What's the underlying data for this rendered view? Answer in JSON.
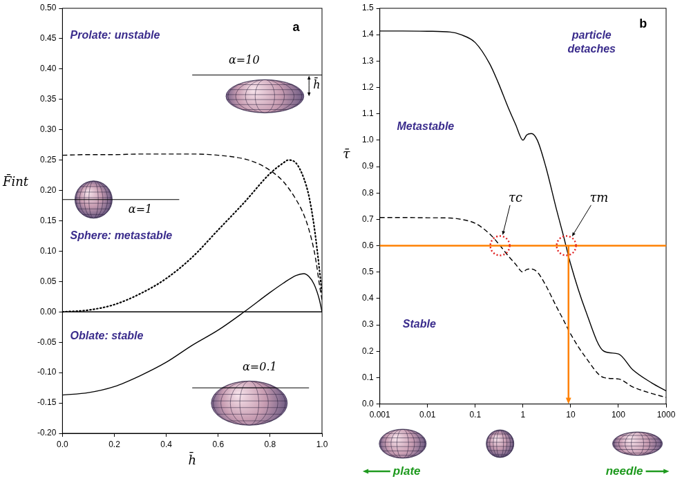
{
  "chart_data": [
    {
      "type": "line",
      "panel_label": "a",
      "x_label": "h̄",
      "y_label": "F̄int",
      "xlim": [
        0,
        1
      ],
      "ylim": [
        -0.2,
        0.5
      ],
      "xticks": [
        {
          "value": 0,
          "label": "0.0"
        },
        0.2,
        0.4,
        0.6,
        0.8,
        {
          "value": 1,
          "label": "1.0"
        }
      ],
      "yticks": [
        {
          "value": -0.2,
          "label": "-0.20"
        },
        -0.15,
        {
          "value": -0.1,
          "label": "-0.10"
        },
        -0.05,
        {
          "value": 0,
          "label": "0.00"
        },
        0.05,
        {
          "value": 0.1,
          "label": "0.10"
        },
        0.15,
        {
          "value": 0.2,
          "label": "0.20"
        },
        0.25,
        {
          "value": 0.3,
          "label": "0.30"
        },
        0.35,
        {
          "value": 0.4,
          "label": "0.40"
        },
        0.45,
        {
          "value": 0.5,
          "label": "0.50"
        }
      ],
      "grid": false,
      "series": [
        {
          "color": "#000000",
          "line_style": "dashed",
          "x": [
            0,
            0.1,
            0.2,
            0.3,
            0.4,
            0.5,
            0.6,
            0.7,
            0.75,
            0.8,
            0.85,
            0.9,
            0.93,
            0.95,
            0.97,
            0.98,
            0.99,
            1.0
          ],
          "values": [
            0.258,
            0.259,
            0.259,
            0.26,
            0.26,
            0.26,
            0.258,
            0.252,
            0.245,
            0.233,
            0.215,
            0.185,
            0.16,
            0.135,
            0.1,
            0.075,
            0.045,
            0.02
          ]
        },
        {
          "color": "#000000",
          "line_style": "dotted",
          "x": [
            0,
            0.1,
            0.2,
            0.3,
            0.4,
            0.5,
            0.6,
            0.7,
            0.8,
            0.85,
            0.87,
            0.9,
            0.93,
            0.95,
            0.97,
            0.99,
            1.0
          ],
          "values": [
            0,
            0.003,
            0.012,
            0.03,
            0.055,
            0.09,
            0.135,
            0.18,
            0.228,
            0.245,
            0.25,
            0.245,
            0.22,
            0.19,
            0.14,
            0.07,
            0.03
          ]
        },
        {
          "color": "#000000",
          "line_style": "solid",
          "x": [
            0,
            0.1,
            0.2,
            0.3,
            0.4,
            0.5,
            0.6,
            0.7,
            0.8,
            0.85,
            0.9,
            0.93,
            0.95,
            0.97,
            0.99,
            1.0
          ],
          "values": [
            -0.137,
            -0.133,
            -0.123,
            -0.105,
            -0.083,
            -0.055,
            -0.03,
            0.0,
            0.032,
            0.047,
            0.06,
            0.063,
            0.058,
            0.045,
            0.02,
            0.0
          ]
        },
        {
          "color": "#000000",
          "line_style": "solid",
          "x": [
            0,
            1
          ],
          "values": [
            0,
            0
          ]
        }
      ],
      "regions": [
        "Prolate: unstable",
        "Sphere: metastable",
        "Oblate: stable"
      ],
      "shape_labels": [
        "α=10",
        "α=1",
        "α=0.1"
      ],
      "gap_label": "h̄"
    },
    {
      "type": "line",
      "panel_label": "b",
      "y_label": "τ̄",
      "log": "x",
      "xlim": [
        0.001,
        1000
      ],
      "ylim": [
        0,
        1.5
      ],
      "xticks": [
        0.001,
        0.01,
        0.1,
        1,
        10,
        100,
        1000
      ],
      "yticks": [
        {
          "value": 0,
          "label": "0.0"
        },
        0.1,
        0.2,
        0.3,
        0.4,
        0.5,
        0.6,
        0.7,
        0.8,
        0.9,
        {
          "value": 1,
          "label": "1.0"
        },
        1.1,
        1.2,
        1.3,
        1.4,
        1.5
      ],
      "grid": false,
      "series": [
        {
          "color": "#000000",
          "line_style": "solid",
          "x": [
            0.001,
            0.003,
            0.01,
            0.03,
            0.05,
            0.1,
            0.2,
            0.3,
            0.5,
            0.7,
            1,
            1.2,
            1.5,
            2,
            3,
            5,
            7,
            10,
            20,
            50,
            100,
            200,
            500,
            1000
          ],
          "values": [
            1.414,
            1.414,
            1.413,
            1.41,
            1.4,
            1.37,
            1.29,
            1.22,
            1.12,
            1.06,
            1.0,
            1.02,
            1.025,
            1.0,
            0.9,
            0.74,
            0.64,
            0.53,
            0.36,
            0.2,
            0.19,
            0.13,
            0.08,
            0.05
          ]
        },
        {
          "color": "#000000",
          "line_style": "dashed",
          "x": [
            0.001,
            0.003,
            0.01,
            0.03,
            0.05,
            0.1,
            0.2,
            0.3,
            0.5,
            0.7,
            1,
            1.2,
            1.5,
            2,
            3,
            5,
            7,
            10,
            20,
            50,
            100,
            200,
            500,
            1000
          ],
          "values": [
            0.707,
            0.707,
            0.706,
            0.705,
            0.7,
            0.685,
            0.645,
            0.61,
            0.56,
            0.53,
            0.5,
            0.51,
            0.512,
            0.5,
            0.45,
            0.37,
            0.32,
            0.265,
            0.18,
            0.1,
            0.095,
            0.065,
            0.04,
            0.025
          ]
        }
      ],
      "threshold": {
        "x": 9,
        "y": 0.6,
        "color": "#ff8000"
      },
      "highlights": {
        "color": "#e02020",
        "points": [
          {
            "x": 0.33,
            "y": 0.6
          },
          {
            "x": 8.1,
            "y": 0.6
          }
        ]
      },
      "regions": [
        "particle detaches",
        "Metastable",
        "Stable"
      ],
      "curve_labels": [
        "τc",
        "τm"
      ],
      "direction_labels": [
        "plate",
        "needle"
      ]
    }
  ]
}
